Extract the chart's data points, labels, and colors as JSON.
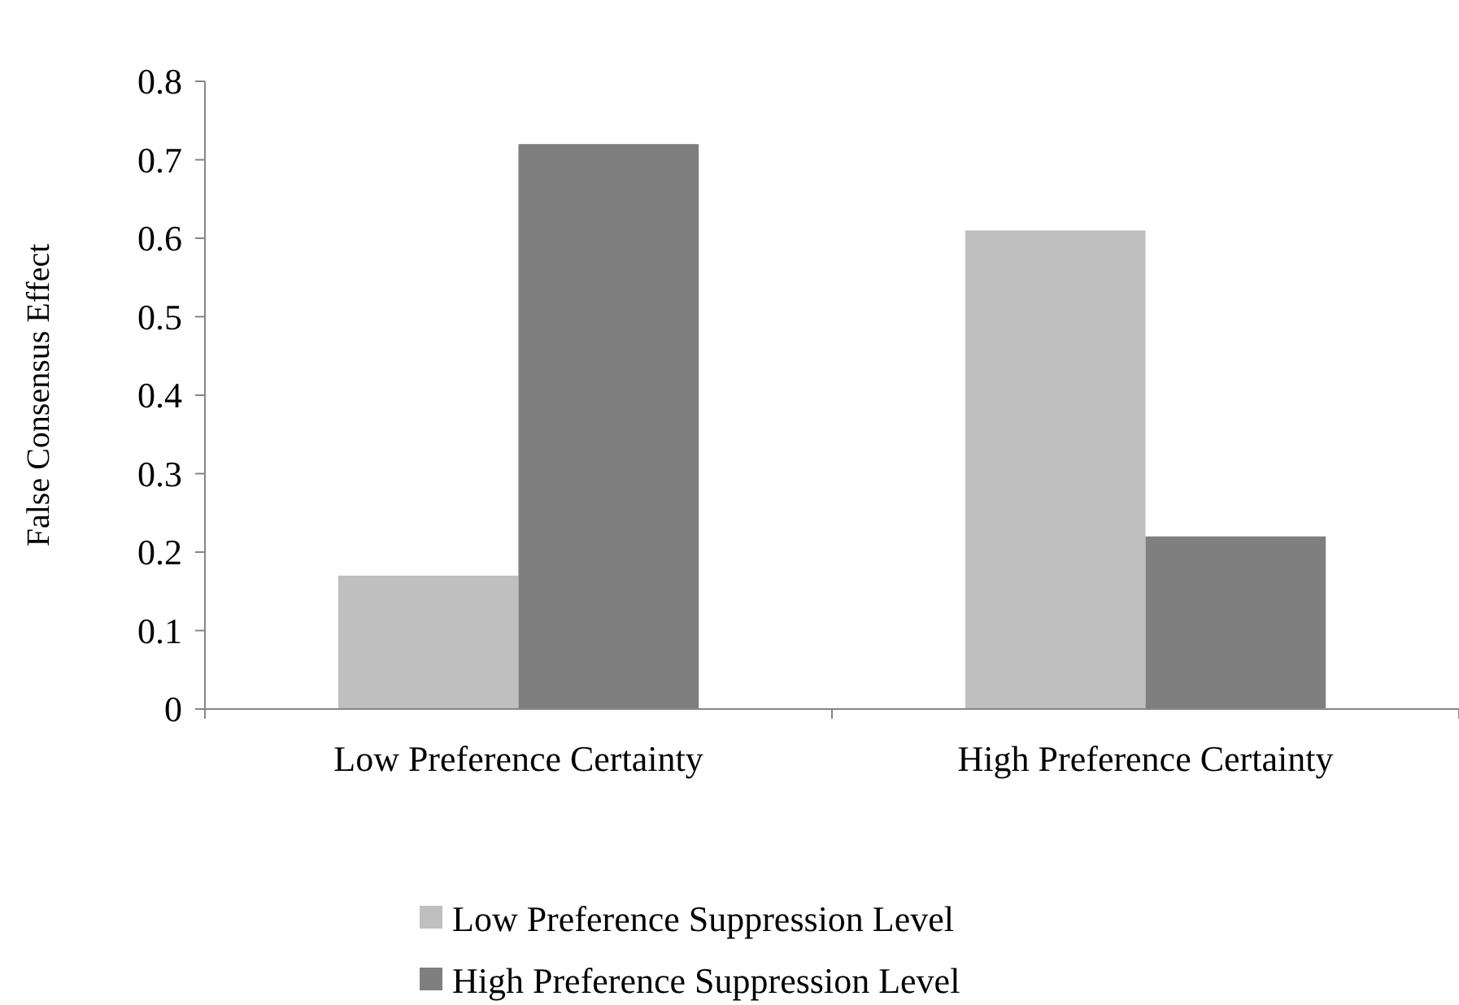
{
  "chart_data": {
    "type": "bar",
    "ylabel": "False Consensus Effect",
    "categories": [
      "Low Preference Certainty",
      "High Preference Certainty"
    ],
    "series": [
      {
        "name": "Low Preference Suppression Level",
        "color": "#bfbfbf",
        "values": [
          0.17,
          0.61
        ]
      },
      {
        "name": "High Preference Suppression Level",
        "color": "#7f7f7f",
        "values": [
          0.72,
          0.22
        ]
      }
    ],
    "ylim": [
      0,
      0.8
    ],
    "yticks": [
      {
        "value": 0,
        "label": "0"
      },
      0.1,
      0.2,
      0.3,
      0.4,
      0.5,
      0.6,
      0.7,
      0.8
    ],
    "grid": false,
    "legend": "bottom"
  }
}
